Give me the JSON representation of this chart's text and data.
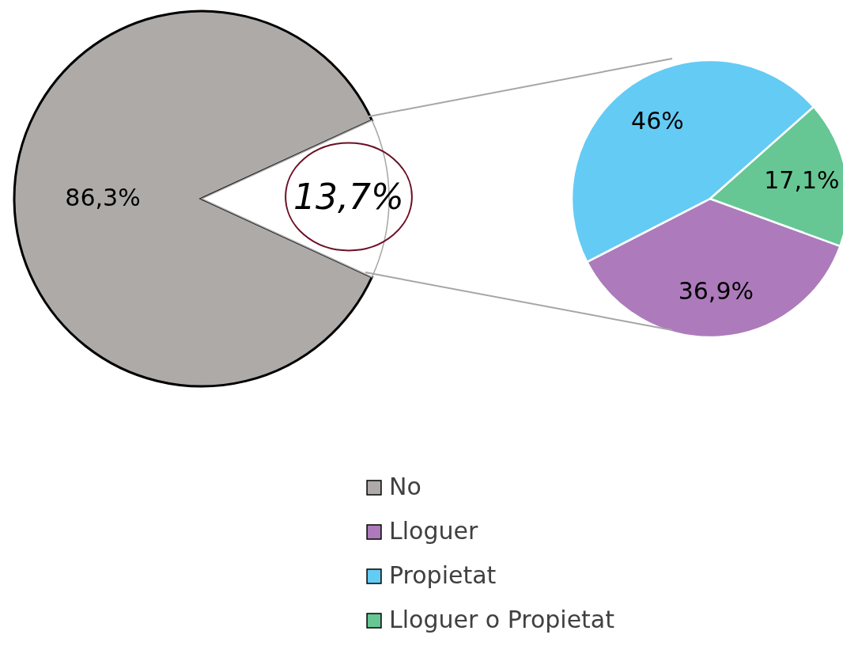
{
  "chart_data": [
    {
      "type": "pie",
      "categories": [
        "No",
        null
      ],
      "values": [
        86.3,
        13.7
      ],
      "colors": [
        "#adaaa8",
        "#ffffff"
      ],
      "value_labels": [
        "86,3%",
        "13,7%"
      ],
      "legend": "bottom"
    },
    {
      "type": "pie",
      "categories": [
        "Lloguer",
        "Propietat",
        "Lloguer o Propietat"
      ],
      "values": [
        36.9,
        46,
        17.1
      ],
      "colors": [
        "#ad7bbb",
        "#64cbf4",
        "#66c794"
      ],
      "value_labels": [
        "36,9%",
        "46%",
        "17,1%"
      ],
      "legend": "bottom"
    }
  ]
}
